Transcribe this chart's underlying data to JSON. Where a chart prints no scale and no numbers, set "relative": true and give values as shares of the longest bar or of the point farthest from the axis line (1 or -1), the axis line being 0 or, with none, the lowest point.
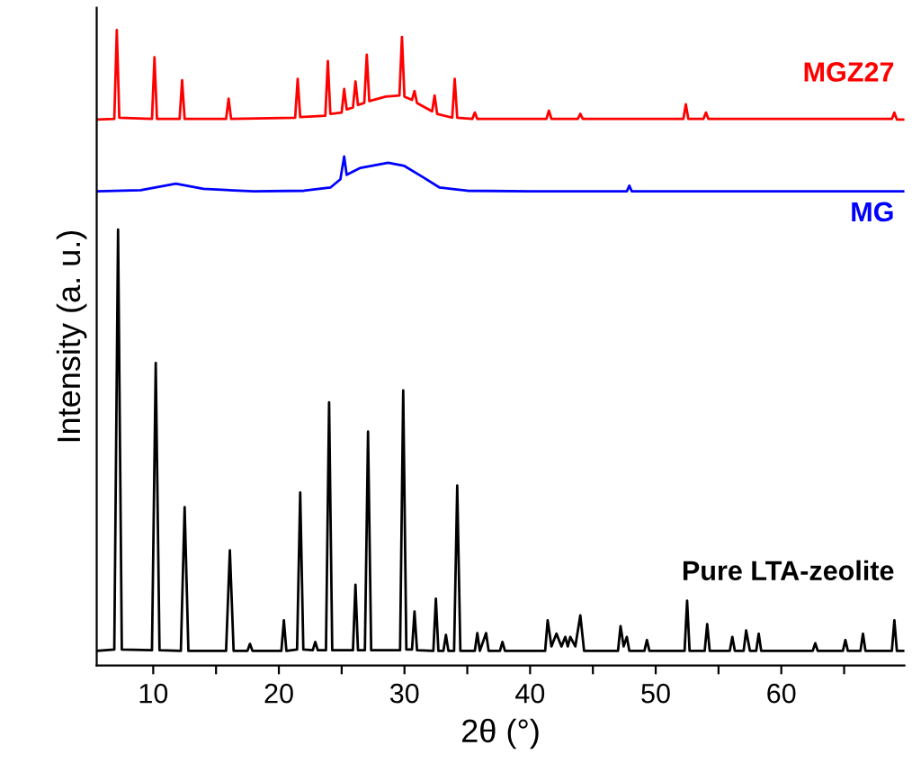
{
  "chart_data": {
    "type": "line",
    "relative": true,
    "xlabel": "2θ (°)",
    "ylabel": "Intensity (a. u.)",
    "xlim": [
      5.5,
      69.8
    ],
    "xticks": [
      10,
      {
        "value": 15,
        "label": null
      },
      20,
      {
        "value": 25,
        "label": null
      },
      30,
      {
        "value": 35,
        "label": null
      },
      40,
      {
        "value": 45,
        "label": null
      },
      50,
      {
        "value": 55,
        "label": null
      },
      60,
      {
        "value": 65,
        "label": null
      }
    ],
    "tick_labels": "x",
    "grid": false,
    "legend": false,
    "marker": "none",
    "line_style": "solid",
    "series": [
      {
        "name": "MGZ27",
        "color": "#ff0000",
        "x": [
          5.5,
          6.9,
          7.1,
          7.3,
          9.9,
          10.1,
          10.3,
          12.1,
          12.3,
          12.5,
          15.8,
          16.0,
          16.2,
          21.3,
          21.5,
          21.7,
          23.7,
          23.9,
          24.1,
          25.0,
          25.2,
          25.4,
          25.9,
          26.1,
          26.3,
          26.8,
          27.0,
          27.2,
          28.5,
          29.6,
          29.8,
          30.0,
          30.6,
          30.8,
          31.0,
          32.2,
          32.4,
          32.6,
          33.8,
          34.0,
          34.2,
          35.4,
          35.6,
          35.8,
          41.3,
          41.5,
          41.7,
          43.8,
          44.0,
          44.2,
          52.2,
          52.4,
          52.6,
          53.8,
          54.0,
          54.2,
          68.8,
          69.0,
          69.2,
          69.8
        ],
        "values": [
          0.859,
          0.86,
          1.0,
          0.862,
          0.86,
          0.957,
          0.86,
          0.86,
          0.921,
          0.86,
          0.86,
          0.892,
          0.86,
          0.862,
          0.923,
          0.863,
          0.865,
          0.951,
          0.868,
          0.87,
          0.907,
          0.875,
          0.878,
          0.919,
          0.882,
          0.885,
          0.961,
          0.888,
          0.895,
          0.897,
          0.989,
          0.895,
          0.89,
          0.904,
          0.885,
          0.872,
          0.897,
          0.868,
          0.862,
          0.923,
          0.862,
          0.86,
          0.87,
          0.86,
          0.86,
          0.873,
          0.86,
          0.86,
          0.868,
          0.86,
          0.86,
          0.883,
          0.86,
          0.86,
          0.87,
          0.86,
          0.86,
          0.87,
          0.859,
          0.859
        ]
      },
      {
        "name": "MG",
        "color": "#0000ff",
        "x": [
          5.5,
          9.0,
          11.8,
          14.0,
          18.0,
          22.0,
          24.1,
          24.9,
          25.2,
          25.4,
          26.5,
          28.7,
          30.0,
          31.5,
          32.8,
          35.0,
          40.0,
          47.7,
          47.9,
          48.1,
          55.0,
          60.0,
          69.8
        ],
        "values": [
          0.746,
          0.748,
          0.758,
          0.75,
          0.746,
          0.747,
          0.752,
          0.765,
          0.801,
          0.772,
          0.783,
          0.791,
          0.786,
          0.768,
          0.752,
          0.747,
          0.746,
          0.746,
          0.755,
          0.746,
          0.746,
          0.746,
          0.746
        ]
      },
      {
        "name": "Pure LTA-zeolite",
        "color": "#000000",
        "x": [
          5.5,
          6.9,
          7.2,
          7.5,
          9.9,
          10.2,
          10.5,
          12.2,
          12.5,
          12.8,
          15.8,
          16.1,
          16.4,
          17.5,
          17.7,
          17.9,
          20.2,
          20.4,
          20.6,
          21.45,
          21.7,
          21.95,
          22.7,
          22.9,
          23.1,
          23.75,
          24.0,
          24.25,
          25.9,
          26.1,
          26.3,
          26.85,
          27.1,
          27.35,
          29.65,
          29.9,
          30.15,
          30.6,
          30.8,
          31.0,
          32.3,
          32.5,
          32.7,
          33.1,
          33.3,
          33.5,
          33.95,
          34.2,
          34.45,
          35.6,
          35.8,
          36.0,
          36.5,
          36.7,
          37.6,
          37.8,
          38.0,
          41.2,
          41.4,
          41.7,
          42.1,
          42.5,
          42.8,
          43.0,
          43.2,
          43.6,
          44.0,
          44.3,
          47.0,
          47.2,
          47.45,
          47.7,
          47.9,
          49.1,
          49.3,
          49.5,
          52.3,
          52.5,
          52.7,
          53.9,
          54.1,
          54.3,
          55.9,
          56.1,
          56.3,
          57.0,
          57.2,
          57.5,
          58.0,
          58.2,
          58.4,
          62.5,
          62.7,
          62.9,
          64.9,
          65.1,
          65.3,
          66.3,
          66.5,
          66.7,
          68.8,
          69.0,
          69.2,
          69.8
        ],
        "values": [
          0.023,
          0.025,
          0.686,
          0.025,
          0.024,
          0.476,
          0.024,
          0.023,
          0.249,
          0.023,
          0.023,
          0.181,
          0.023,
          0.023,
          0.034,
          0.023,
          0.023,
          0.071,
          0.023,
          0.025,
          0.272,
          0.025,
          0.024,
          0.037,
          0.024,
          0.024,
          0.414,
          0.024,
          0.024,
          0.127,
          0.024,
          0.024,
          0.368,
          0.024,
          0.024,
          0.433,
          0.025,
          0.025,
          0.085,
          0.024,
          0.023,
          0.105,
          0.023,
          0.023,
          0.048,
          0.023,
          0.023,
          0.283,
          0.023,
          0.023,
          0.051,
          0.023,
          0.051,
          0.023,
          0.023,
          0.037,
          0.023,
          0.023,
          0.071,
          0.03,
          0.05,
          0.03,
          0.045,
          0.03,
          0.045,
          0.03,
          0.079,
          0.023,
          0.023,
          0.062,
          0.03,
          0.045,
          0.023,
          0.023,
          0.04,
          0.023,
          0.023,
          0.102,
          0.023,
          0.023,
          0.065,
          0.023,
          0.023,
          0.045,
          0.023,
          0.023,
          0.055,
          0.023,
          0.023,
          0.05,
          0.023,
          0.023,
          0.035,
          0.023,
          0.023,
          0.04,
          0.023,
          0.023,
          0.05,
          0.023,
          0.023,
          0.071,
          0.023,
          0.023
        ]
      }
    ]
  }
}
